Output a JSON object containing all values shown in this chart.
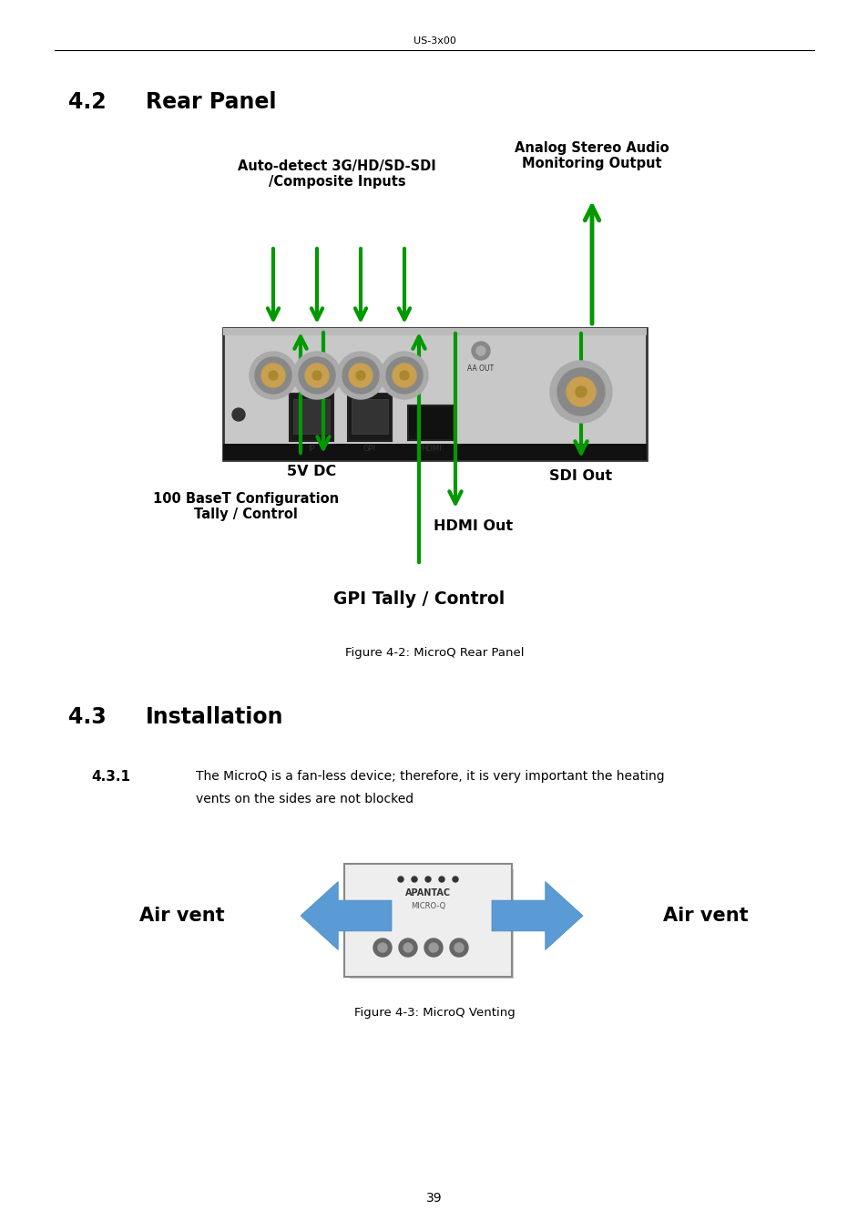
{
  "header_text": "US-3x00",
  "sec42_num": "4.2",
  "sec42_title": "Rear Panel",
  "sec43_num": "4.3",
  "sec43_title": "Installation",
  "sub431_num": "4.3.1",
  "sub431_text1": "The MicroQ is a fan-less device; therefore, it is very important the heating",
  "sub431_text2": "vents on the sides are not blocked",
  "fig42_caption": "Figure 4-2: MicroQ Rear Panel",
  "fig43_caption": "Figure 4-3: MicroQ Venting",
  "page_number": "39",
  "label_analog": "Analog Stereo Audio\nMonitoring Output",
  "label_autodetect": "Auto-detect 3G/HD/SD-SDI\n/Composite Inputs",
  "label_5vdc": "5V DC",
  "label_100base": "100 BaseT Configuration\nTally / Control",
  "label_gpi_bottom": "GPI Tally / Control",
  "label_hdmi": "HDMI Out",
  "label_sdi_out": "SDI Out",
  "label_air_vent": "Air vent",
  "green": "#009900",
  "blue_arrow": "#5B9BD5",
  "bg": "#ffffff",
  "panel_bg": "#C8C8C8",
  "panel_dark": "#555555",
  "panel_black": "#111111"
}
